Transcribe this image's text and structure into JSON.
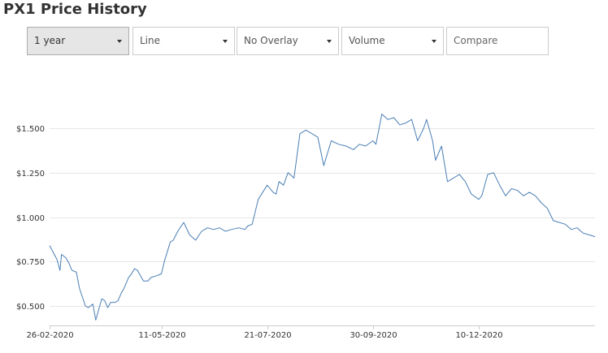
{
  "page": {
    "title": "PX1 Price History"
  },
  "controls": {
    "period": "1 year",
    "chart_type": "Line",
    "overlay": "No Overlay",
    "volume": "Volume",
    "compare_placeholder": "Compare"
  },
  "colors": {
    "line": "#4a7fb5",
    "grid": "#e6e6e6",
    "axis": "#cccccc"
  },
  "chart_data": {
    "type": "line",
    "title": "PX1 Price History",
    "xlabel": "",
    "ylabel": "",
    "grid": "horizontal",
    "legend": "none",
    "ylim": [
      0.39,
      1.72
    ],
    "xlim": [
      "2020-02-26",
      "2021-02-26"
    ],
    "yticks": [
      0.5,
      0.75,
      1.0,
      1.25,
      1.5
    ],
    "ytick_labels": [
      "$0.500",
      "$0.750",
      "$1.000",
      "$1.250",
      "$1.500"
    ],
    "xticks": [
      "2020-02-26",
      "2020-05-11",
      "2020-07-21",
      "2020-09-30",
      "2020-12-10"
    ],
    "xtick_labels": [
      "26-02-2020",
      "11-05-2020",
      "21-07-2020",
      "30-09-2020",
      "10-12-2020"
    ],
    "series": [
      {
        "x": [
          "2020-02-26",
          "2020-03-02",
          "2020-03-04",
          "2020-03-05",
          "2020-03-08",
          "2020-03-10",
          "2020-03-12",
          "2020-03-15",
          "2020-03-17",
          "2020-03-21",
          "2020-03-23",
          "2020-03-26",
          "2020-03-28",
          "2020-03-30",
          "2020-04-01",
          "2020-04-03",
          "2020-04-05",
          "2020-04-07",
          "2020-04-10",
          "2020-04-12",
          "2020-04-14",
          "2020-04-16",
          "2020-04-19",
          "2020-04-21",
          "2020-04-23",
          "2020-04-25",
          "2020-04-27",
          "2020-04-29",
          "2020-05-02",
          "2020-05-04",
          "2020-05-08",
          "2020-05-11",
          "2020-05-13",
          "2020-05-17",
          "2020-05-19",
          "2020-05-22",
          "2020-05-26",
          "2020-05-30",
          "2020-06-03",
          "2020-06-07",
          "2020-06-11",
          "2020-06-15",
          "2020-06-19",
          "2020-06-23",
          "2020-06-27",
          "2020-07-02",
          "2020-07-06",
          "2020-07-08",
          "2020-07-11",
          "2020-07-15",
          "2020-07-21",
          "2020-07-25",
          "2020-07-27",
          "2020-07-29",
          "2020-08-01",
          "2020-08-04",
          "2020-08-08",
          "2020-08-12",
          "2020-08-16",
          "2020-08-20",
          "2020-08-24",
          "2020-08-28",
          "2020-09-02",
          "2020-09-07",
          "2020-09-12",
          "2020-09-17",
          "2020-09-21",
          "2020-09-25",
          "2020-09-30",
          "2020-10-02",
          "2020-10-06",
          "2020-10-10",
          "2020-10-14",
          "2020-10-18",
          "2020-10-22",
          "2020-10-26",
          "2020-10-30",
          "2020-11-03",
          "2020-11-05",
          "2020-11-09",
          "2020-11-11",
          "2020-11-15",
          "2020-11-19",
          "2020-11-23",
          "2020-11-27",
          "2020-12-01",
          "2020-12-05",
          "2020-12-10",
          "2020-12-12",
          "2020-12-16",
          "2020-12-20",
          "2020-12-24",
          "2020-12-28",
          "2021-01-01",
          "2021-01-05",
          "2021-01-09",
          "2021-01-13",
          "2021-01-17",
          "2021-01-21",
          "2021-01-25",
          "2021-01-29",
          "2021-02-02",
          "2021-02-06",
          "2021-02-10",
          "2021-02-14",
          "2021-02-18",
          "2021-02-22",
          "2021-02-26"
        ],
        "y": [
          0.84,
          0.76,
          0.7,
          0.79,
          0.77,
          0.74,
          0.7,
          0.69,
          0.6,
          0.5,
          0.49,
          0.51,
          0.42,
          0.48,
          0.54,
          0.53,
          0.49,
          0.52,
          0.52,
          0.53,
          0.57,
          0.6,
          0.66,
          0.68,
          0.71,
          0.7,
          0.67,
          0.64,
          0.64,
          0.66,
          0.67,
          0.68,
          0.75,
          0.86,
          0.87,
          0.92,
          0.97,
          0.9,
          0.87,
          0.92,
          0.94,
          0.93,
          0.94,
          0.92,
          0.93,
          0.94,
          0.93,
          0.95,
          0.96,
          1.1,
          1.18,
          1.14,
          1.13,
          1.2,
          1.18,
          1.25,
          1.22,
          1.47,
          1.49,
          1.47,
          1.45,
          1.29,
          1.43,
          1.41,
          1.4,
          1.38,
          1.41,
          1.4,
          1.43,
          1.41,
          1.58,
          1.55,
          1.56,
          1.52,
          1.53,
          1.55,
          1.43,
          1.5,
          1.55,
          1.43,
          1.32,
          1.4,
          1.2,
          1.22,
          1.24,
          1.2,
          1.13,
          1.1,
          1.12,
          1.24,
          1.25,
          1.18,
          1.12,
          1.16,
          1.15,
          1.12,
          1.14,
          1.12,
          1.08,
          1.05,
          0.98,
          0.97,
          0.96,
          0.93,
          0.94,
          0.91,
          0.9,
          0.89
        ]
      }
    ]
  }
}
